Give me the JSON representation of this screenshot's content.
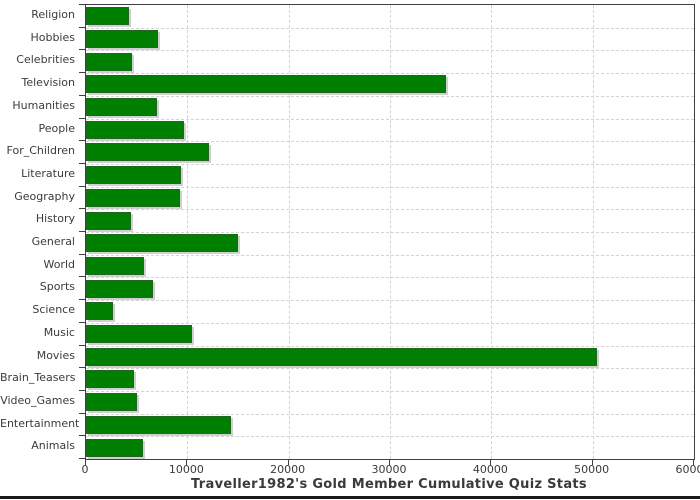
{
  "chart_data": {
    "type": "bar",
    "orientation": "horizontal",
    "title": "Traveller1982's Gold Member Cumulative Quiz Stats",
    "categories": [
      "Religion",
      "Hobbies",
      "Celebrities",
      "Television",
      "Humanities",
      "People",
      "For_Children",
      "Literature",
      "Geography",
      "History",
      "General",
      "World",
      "Sports",
      "Science",
      "Music",
      "Movies",
      "Brain_Teasers",
      "Video_Games",
      "Entertainment",
      "Animals"
    ],
    "values": [
      4200,
      7100,
      4500,
      35500,
      7000,
      9700,
      12100,
      9400,
      9300,
      4400,
      15000,
      5700,
      6600,
      2700,
      10500,
      50400,
      4700,
      5000,
      14300,
      5600
    ],
    "xlabel": "",
    "ylabel": "",
    "xlim": [
      0,
      60000
    ],
    "x_ticks": [
      0,
      10000,
      20000,
      30000,
      40000,
      50000,
      60000
    ],
    "grid": true,
    "legend": "none",
    "bar_color": "#008000",
    "bar_shadow_color": "#d0d0d0",
    "grid_color": "#d4d4d4",
    "axis_color": "#3f3f3f",
    "label_color": "#3b3b3b"
  }
}
